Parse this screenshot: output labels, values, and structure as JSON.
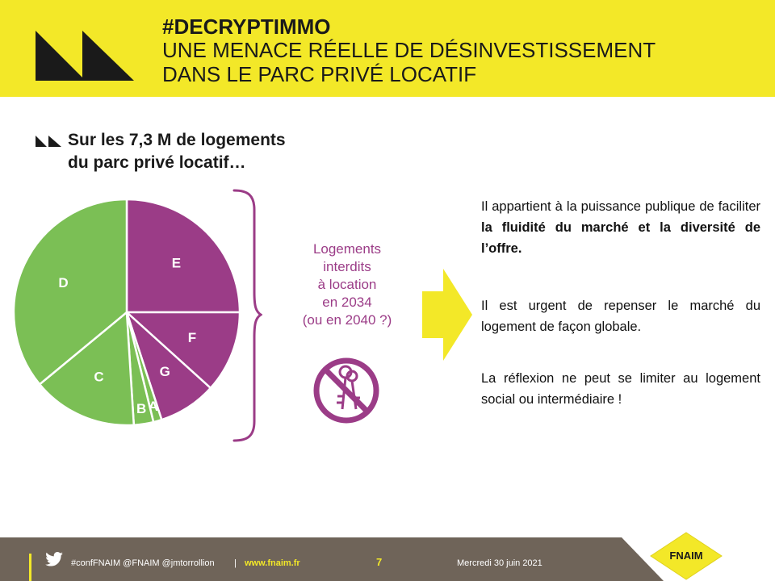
{
  "header": {
    "hashtag": "#DECRYPTIMMO",
    "title_line1": "UNE MENACE RÉELLE DE DÉSINVESTISSEMENT",
    "title_line2": "DANS LE PARC PRIVÉ LOCATIF"
  },
  "subhead": {
    "line1": "Sur les 7,3 M de logements",
    "line2": "du parc privé locatif…"
  },
  "chart_data": {
    "type": "pie",
    "categories": [
      "E",
      "F",
      "G",
      "A",
      "B",
      "C",
      "D"
    ],
    "values": [
      25,
      11.7,
      8.3,
      1.2,
      2.8,
      15,
      36
    ],
    "colors": [
      "#9b3c87",
      "#9b3c87",
      "#9b3c87",
      "#7bbf55",
      "#7bbf55",
      "#7bbf55",
      "#7bbf55"
    ],
    "title": "",
    "legend": "labels on slices"
  },
  "center_label": {
    "line1": "Logements",
    "line2": "interdits",
    "line3": "à location",
    "line4": "en 2034",
    "line5": "(ou en 2040 ?)"
  },
  "right": {
    "p1_a": "Il appartient à la puissance publique de faciliter ",
    "p1_b": "la fluidité du marché et la diversité de l’offre.",
    "p2": "Il est urgent de repenser le marché du logement de façon globale.",
    "p3": "La réflexion ne peut se limiter au logement social ou intermédiaire !"
  },
  "footer": {
    "social": "#confFNAIM @FNAIM @jmtorrollion",
    "sep": "|",
    "website": "www.fnaim.fr",
    "page": "7",
    "date": "Mercredi 30 juin 2021",
    "brand": "FNAIM"
  },
  "icons": {
    "logo": "double-triangle-logo",
    "bullet": "double-triangle-bullet",
    "no_keys": "no-keys-icon",
    "arrow": "right-arrow",
    "twitter": "twitter-icon"
  },
  "colors": {
    "yellow": "#f3e828",
    "purple": "#9b3c87",
    "green": "#7bbf55",
    "footer": "#6f6459"
  }
}
